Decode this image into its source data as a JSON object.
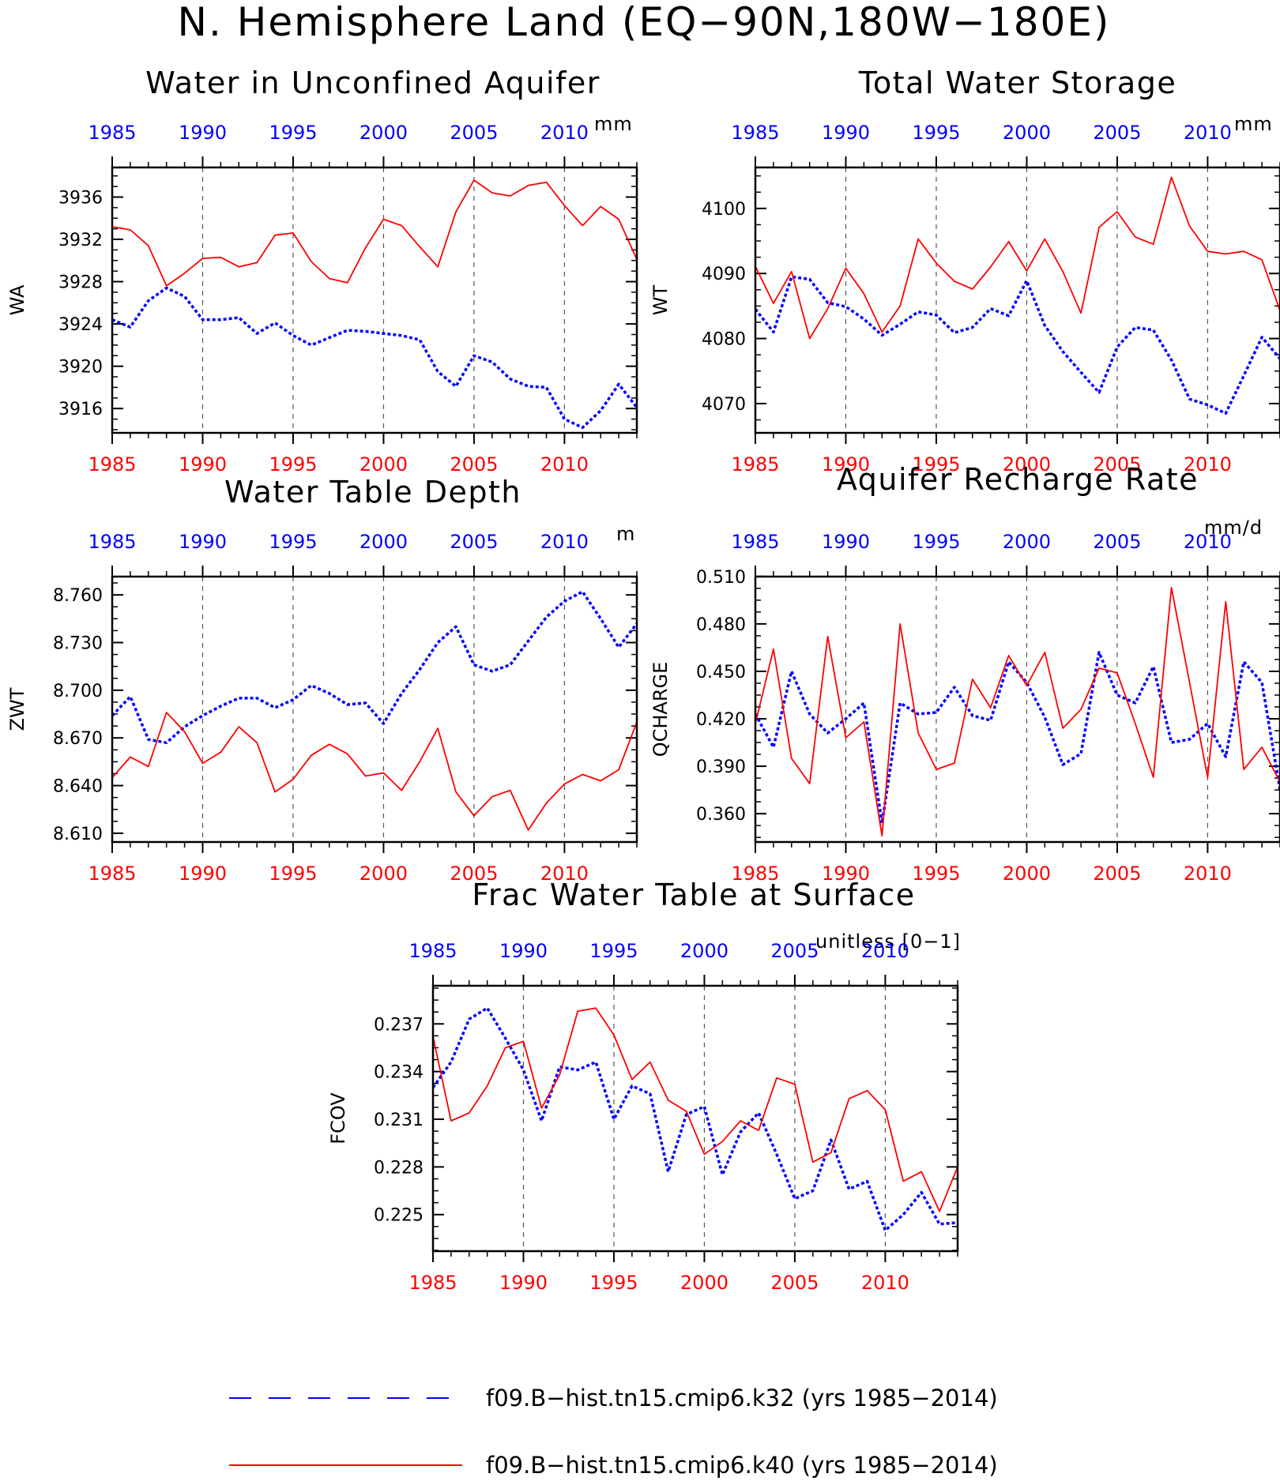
{
  "page": {
    "title": "N. Hemisphere Land (EQ−90N,180W−180E)"
  },
  "colors": {
    "series_k32": "#0000ff",
    "series_k40": "#ff0000",
    "axis": "#000000",
    "top_ticks": "#0000ff",
    "bottom_ticks": "#ff0000"
  },
  "legend": {
    "placement": "bottom",
    "items": [
      {
        "label": "f09.B−hist.tn15.cmip6.k32 (yrs 1985−2014)",
        "color": "#0000ff",
        "style": "dashed"
      },
      {
        "label": "f09.B−hist.tn15.cmip6.k40 (yrs 1985−2014)",
        "color": "#ff0000",
        "style": "solid"
      }
    ]
  },
  "chart_data": [
    {
      "type": "line",
      "title": "Water in Unconfined Aquifer",
      "ylabel": "WA",
      "units": "mm",
      "xlim": [
        1985,
        2014
      ],
      "ylim": [
        3913.7,
        3938.8
      ],
      "xticks": [
        1985,
        1990,
        1995,
        2000,
        2005,
        2010
      ],
      "yticks": [
        3916,
        3920,
        3924,
        3928,
        3932,
        3936
      ],
      "yticklabels": [
        "3916",
        "3920",
        "3924",
        "3928",
        "3932",
        "3936"
      ],
      "vlines": [
        1990,
        1995,
        2000,
        2005,
        2010
      ],
      "x": [
        1985,
        1986,
        1987,
        1988,
        1989,
        1990,
        1991,
        1992,
        1993,
        1994,
        1995,
        1996,
        1997,
        1998,
        1999,
        2000,
        2001,
        2002,
        2003,
        2004,
        2005,
        2006,
        2007,
        2008,
        2009,
        2010,
        2011,
        2012,
        2013,
        2014
      ],
      "series": [
        {
          "name": "f09.B−hist.tn15.cmip6.k32 (yrs 1985−2014)",
          "color": "#0000ff",
          "style": "dashed",
          "values": [
            3924.4,
            3923.7,
            3926.2,
            3927.4,
            3926.6,
            3924.4,
            3924.4,
            3924.6,
            3923.1,
            3924.1,
            3922.9,
            3922.0,
            3922.7,
            3923.4,
            3923.3,
            3923.1,
            3922.9,
            3922.5,
            3919.5,
            3918.1,
            3921.0,
            3920.4,
            3918.8,
            3918.1,
            3918.0,
            3915.0,
            3914.2,
            3915.8,
            3918.3,
            3916.1
          ]
        },
        {
          "name": "f09.B−hist.tn15.cmip6.k40 (yrs 1985−2014)",
          "color": "#ff0000",
          "style": "solid",
          "values": [
            3933.2,
            3932.9,
            3931.4,
            3927.6,
            3928.8,
            3930.2,
            3930.3,
            3929.4,
            3929.8,
            3932.4,
            3932.6,
            3929.9,
            3928.3,
            3927.9,
            3931.2,
            3933.9,
            3933.3,
            3931.3,
            3929.4,
            3934.6,
            3937.6,
            3936.4,
            3936.1,
            3937.1,
            3937.4,
            3935.2,
            3933.3,
            3935.1,
            3933.9,
            3930.1
          ]
        }
      ]
    },
    {
      "type": "line",
      "title": "Total Water Storage",
      "ylabel": "WT",
      "units": "mm",
      "xlim": [
        1985,
        2014
      ],
      "ylim": [
        4065.5,
        4106.3
      ],
      "xticks": [
        1985,
        1990,
        1995,
        2000,
        2005,
        2010
      ],
      "yticks": [
        4070,
        4080,
        4090,
        4100
      ],
      "yticklabels": [
        "4070",
        "4080",
        "4090",
        "4100"
      ],
      "vlines": [
        1990,
        1995,
        2000,
        2005,
        2010
      ],
      "x": [
        1985,
        1986,
        1987,
        1988,
        1989,
        1990,
        1991,
        1992,
        1993,
        1994,
        1995,
        1996,
        1997,
        1998,
        1999,
        2000,
        2001,
        2002,
        2003,
        2004,
        2005,
        2006,
        2007,
        2008,
        2009,
        2010,
        2011,
        2012,
        2013,
        2014
      ],
      "series": [
        {
          "name": "f09.B−hist.tn15.cmip6.k32 (yrs 1985−2014)",
          "color": "#0000ff",
          "style": "dashed",
          "values": [
            4084.5,
            4081.0,
            4089.5,
            4089.1,
            4085.5,
            4084.9,
            4083.0,
            4080.5,
            4082.2,
            4084.1,
            4083.6,
            4080.9,
            4081.7,
            4084.6,
            4083.5,
            4088.9,
            4082.0,
            4078.0,
            4074.8,
            4071.7,
            4078.7,
            4081.7,
            4081.3,
            4076.7,
            4070.7,
            4069.8,
            4068.5,
            4074.3,
            4080.2,
            4076.9
          ]
        },
        {
          "name": "f09.B−hist.tn15.cmip6.k40 (yrs 1985−2014)",
          "color": "#ff0000",
          "style": "solid",
          "values": [
            4091.1,
            4085.4,
            4090.3,
            4080.0,
            4084.6,
            4090.8,
            4086.9,
            4081.0,
            4085.0,
            4095.3,
            4091.6,
            4088.8,
            4087.6,
            4091.0,
            4094.9,
            4090.4,
            4095.3,
            4090.3,
            4083.9,
            4097.1,
            4099.5,
            4095.6,
            4094.5,
            4104.8,
            4097.3,
            4093.4,
            4093.0,
            4093.4,
            4092.1,
            4084.3
          ]
        }
      ]
    },
    {
      "type": "line",
      "title": "Water Table Depth",
      "ylabel": "ZWT",
      "units": "m",
      "xlim": [
        1985,
        2014
      ],
      "ylim": [
        8.6045,
        8.7715
      ],
      "xticks": [
        1985,
        1990,
        1995,
        2000,
        2005,
        2010
      ],
      "yticks": [
        8.61,
        8.64,
        8.67,
        8.7,
        8.73,
        8.76
      ],
      "yticklabels": [
        "8.610",
        "8.640",
        "8.670",
        "8.700",
        "8.730",
        "8.760"
      ],
      "vlines": [
        1990,
        1995,
        2000,
        2005,
        2010
      ],
      "x": [
        1985,
        1986,
        1987,
        1988,
        1989,
        1990,
        1991,
        1992,
        1993,
        1994,
        1995,
        1996,
        1997,
        1998,
        1999,
        2000,
        2001,
        2002,
        2003,
        2004,
        2005,
        2006,
        2007,
        2008,
        2009,
        2010,
        2011,
        2012,
        2013,
        2014
      ],
      "series": [
        {
          "name": "f09.B−hist.tn15.cmip6.k32 (yrs 1985−2014)",
          "color": "#0000ff",
          "style": "dashed",
          "values": [
            8.684,
            8.696,
            8.669,
            8.667,
            8.677,
            8.684,
            8.69,
            8.695,
            8.695,
            8.689,
            8.694,
            8.703,
            8.698,
            8.691,
            8.692,
            8.679,
            8.698,
            8.713,
            8.73,
            8.74,
            8.716,
            8.712,
            8.716,
            8.731,
            8.746,
            8.756,
            8.762,
            8.745,
            8.727,
            8.742
          ]
        },
        {
          "name": "f09.B−hist.tn15.cmip6.k40 (yrs 1985−2014)",
          "color": "#ff0000",
          "style": "solid",
          "values": [
            8.645,
            8.658,
            8.652,
            8.686,
            8.674,
            8.654,
            8.661,
            8.677,
            8.667,
            8.636,
            8.644,
            8.659,
            8.666,
            8.66,
            8.646,
            8.648,
            8.637,
            8.655,
            8.676,
            8.636,
            8.621,
            8.633,
            8.637,
            8.612,
            8.629,
            8.641,
            8.647,
            8.643,
            8.65,
            8.68
          ]
        }
      ]
    },
    {
      "type": "line",
      "title": "Aquifer Recharge Rate",
      "ylabel": "QCHARGE",
      "units": "mm/d",
      "xlim": [
        1985,
        2014
      ],
      "ylim": [
        0.3421,
        0.5099
      ],
      "xticks": [
        1985,
        1990,
        1995,
        2000,
        2005,
        2010
      ],
      "yticks": [
        0.36,
        0.39,
        0.42,
        0.45,
        0.48,
        0.51
      ],
      "yticklabels": [
        "0.360",
        "0.390",
        "0.420",
        "0.450",
        "0.480",
        "0.510"
      ],
      "vlines": [
        1990,
        1995,
        2000,
        2005,
        2010
      ],
      "x": [
        1985,
        1986,
        1987,
        1988,
        1989,
        1990,
        1991,
        1992,
        1993,
        1994,
        1995,
        1996,
        1997,
        1998,
        1999,
        2000,
        2001,
        2002,
        2003,
        2004,
        2005,
        2006,
        2007,
        2008,
        2009,
        2010,
        2011,
        2012,
        2013,
        2014
      ],
      "series": [
        {
          "name": "f09.B−hist.tn15.cmip6.k32 (yrs 1985−2014)",
          "color": "#0000ff",
          "style": "dashed",
          "values": [
            0.423,
            0.402,
            0.45,
            0.423,
            0.411,
            0.42,
            0.43,
            0.354,
            0.43,
            0.423,
            0.424,
            0.44,
            0.422,
            0.419,
            0.456,
            0.443,
            0.421,
            0.391,
            0.398,
            0.462,
            0.435,
            0.43,
            0.453,
            0.405,
            0.407,
            0.417,
            0.396,
            0.456,
            0.443,
            0.375
          ]
        },
        {
          "name": "f09.B−hist.tn15.cmip6.k40 (yrs 1985−2014)",
          "color": "#ff0000",
          "style": "solid",
          "values": [
            0.417,
            0.464,
            0.395,
            0.379,
            0.472,
            0.408,
            0.418,
            0.346,
            0.48,
            0.411,
            0.388,
            0.392,
            0.445,
            0.427,
            0.46,
            0.441,
            0.462,
            0.414,
            0.426,
            0.452,
            0.449,
            0.417,
            0.383,
            0.503,
            0.443,
            0.383,
            0.494,
            0.388,
            0.402,
            0.38
          ]
        }
      ]
    },
    {
      "type": "line",
      "title": "Frac Water Table at Surface",
      "ylabel": "FCOV",
      "units": "unitless [0−1]",
      "xlim": [
        1985,
        2014
      ],
      "ylim": [
        0.2227,
        0.2394
      ],
      "xticks": [
        1985,
        1990,
        1995,
        2000,
        2005,
        2010
      ],
      "yticks": [
        0.225,
        0.228,
        0.231,
        0.234,
        0.237
      ],
      "yticklabels": [
        "0.225",
        "0.228",
        "0.231",
        "0.234",
        "0.237"
      ],
      "vlines": [
        1990,
        1995,
        2000,
        2005,
        2010
      ],
      "x": [
        1985,
        1986,
        1987,
        1988,
        1989,
        1990,
        1991,
        1992,
        1993,
        1994,
        1995,
        1996,
        1997,
        1998,
        1999,
        2000,
        2001,
        2002,
        2003,
        2004,
        2005,
        2006,
        2007,
        2008,
        2009,
        2010,
        2011,
        2012,
        2013,
        2014
      ],
      "series": [
        {
          "name": "f09.B−hist.tn15.cmip6.k32 (yrs 1985−2014)",
          "color": "#0000ff",
          "style": "dashed",
          "values": [
            0.233,
            0.2346,
            0.2373,
            0.238,
            0.2361,
            0.2341,
            0.2309,
            0.2343,
            0.2341,
            0.2346,
            0.231,
            0.2331,
            0.2326,
            0.2277,
            0.2313,
            0.2318,
            0.2275,
            0.2302,
            0.2314,
            0.2288,
            0.226,
            0.2265,
            0.2297,
            0.2266,
            0.2271,
            0.224,
            0.225,
            0.2264,
            0.2244,
            0.2245
          ]
        },
        {
          "name": "f09.B−hist.tn15.cmip6.k40 (yrs 1985−2014)",
          "color": "#ff0000",
          "style": "solid",
          "values": [
            0.2362,
            0.2309,
            0.2314,
            0.2331,
            0.2355,
            0.2359,
            0.2317,
            0.2338,
            0.2378,
            0.238,
            0.2363,
            0.2335,
            0.2346,
            0.2322,
            0.2315,
            0.2288,
            0.2296,
            0.2309,
            0.2303,
            0.2336,
            0.2332,
            0.2283,
            0.2289,
            0.2323,
            0.2328,
            0.2316,
            0.2271,
            0.2277,
            0.2252,
            0.228
          ]
        }
      ]
    }
  ]
}
